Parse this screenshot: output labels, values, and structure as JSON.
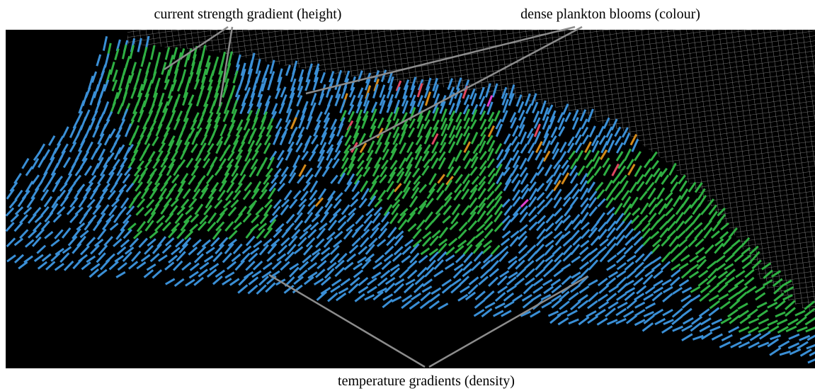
{
  "figure": {
    "annotations": [
      {
        "label": "current strength gradient (height)"
      },
      {
        "label": "dense plankton blooms (colour)"
      },
      {
        "label": "temperature gradients (density)"
      }
    ]
  }
}
